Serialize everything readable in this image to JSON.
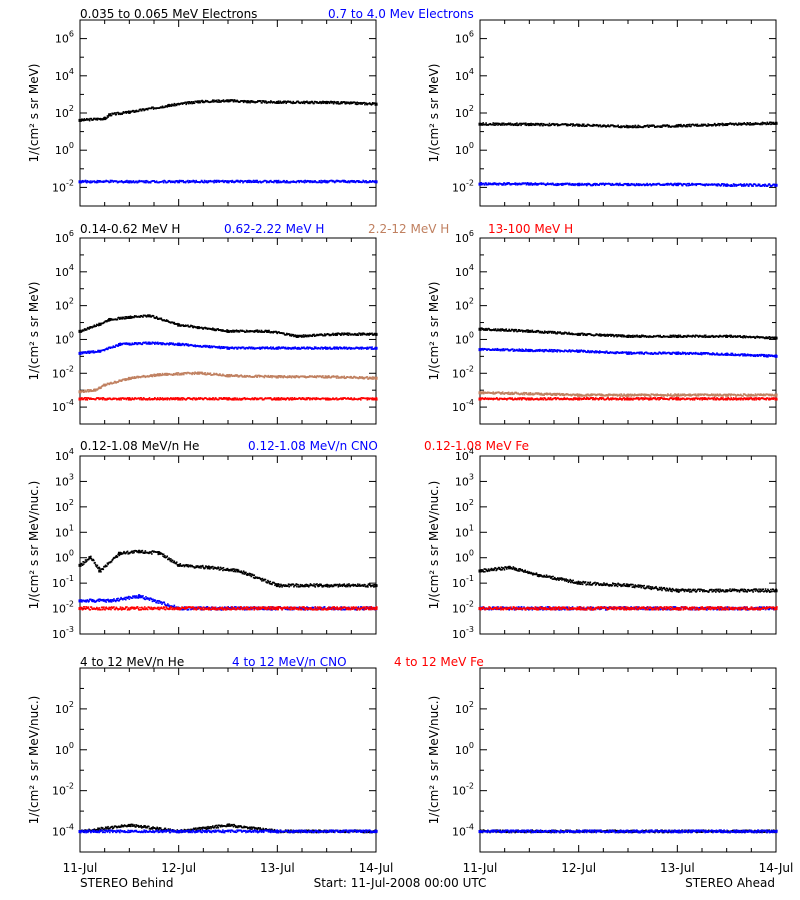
{
  "footer": {
    "left": "STEREO Behind",
    "center": "Start: 11-Jul-2008 00:00 UTC",
    "right": "STEREO Ahead"
  },
  "x_ticks": [
    "11-Jul",
    "12-Jul",
    "13-Jul",
    "14-Jul"
  ],
  "rows": [
    {
      "ylabel": "1/(cm² s sr MeV)",
      "ylim_exp": [
        -3,
        7
      ],
      "ticks": [
        -2,
        0,
        2,
        4,
        6
      ],
      "legend": [
        {
          "text": "0.035 to 0.065 MeV Electrons",
          "color": "#000000"
        },
        {
          "text": "0.7 to 4.0 Mev Electrons",
          "color": "#0000ff"
        }
      ]
    },
    {
      "ylabel": "1/(cm² s sr MeV)",
      "ylim_exp": [
        -5,
        6
      ],
      "ticks": [
        -4,
        -2,
        0,
        2,
        4,
        6
      ],
      "legend": [
        {
          "text": "0.14-0.62 MeV H",
          "color": "#000000"
        },
        {
          "text": "0.62-2.22 MeV H",
          "color": "#0000ff"
        },
        {
          "text": "2.2-12 MeV H",
          "color": "#c08060"
        },
        {
          "text": "13-100 MeV H",
          "color": "#ff0000"
        }
      ]
    },
    {
      "ylabel": "1/(cm² s sr MeV/nuc.)",
      "ylim_exp": [
        -3,
        4
      ],
      "ticks": [
        -3,
        -2,
        -1,
        0,
        1,
        2,
        3,
        4
      ],
      "legend": [
        {
          "text": "0.12-1.08 MeV/n He",
          "color": "#000000"
        },
        {
          "text": "0.12-1.08 MeV/n CNO",
          "color": "#0000ff"
        },
        {
          "text": "0.12-1.08 MeV Fe",
          "color": "#ff0000"
        }
      ]
    },
    {
      "ylabel": "1/(cm² s sr MeV/nuc.)",
      "ylim_exp": [
        -5,
        4
      ],
      "ticks": [
        -4,
        -2,
        0,
        2
      ],
      "legend": [
        {
          "text": "4 to 12 MeV/n He",
          "color": "#000000"
        },
        {
          "text": "4 to 12 MeV/n CNO",
          "color": "#0000ff"
        },
        {
          "text": "4 to 12 MeV Fe",
          "color": "#ff0000"
        }
      ]
    }
  ],
  "chart_data": [
    {
      "type": "scatter",
      "panel": "behind-electrons",
      "xlim_days": [
        0,
        3
      ],
      "ylim": [
        0.001,
        10000000
      ],
      "log_y": true,
      "series": [
        {
          "name": "0.035 to 0.065 MeV Electrons",
          "color": "#000000",
          "x": [
            0,
            0.25,
            0.3,
            0.5,
            0.9,
            1.2,
            1.5,
            1.7,
            2.0,
            2.5,
            3.0
          ],
          "y": [
            40,
            50,
            80,
            110,
            250,
            400,
            450,
            400,
            370,
            360,
            300
          ]
        },
        {
          "name": "0.7 to 4.0 Mev Electrons",
          "color": "#0000ff",
          "x": [
            0,
            0.5,
            1.0,
            1.5,
            2.0,
            2.5,
            3.0
          ],
          "y": [
            0.02,
            0.02,
            0.02,
            0.02,
            0.02,
            0.02,
            0.02
          ]
        }
      ]
    },
    {
      "type": "scatter",
      "panel": "ahead-electrons",
      "xlim_days": [
        0,
        3
      ],
      "ylim": [
        0.001,
        10000000
      ],
      "log_y": true,
      "series": [
        {
          "name": "0.035 to 0.065 MeV Electrons",
          "color": "#000000",
          "x": [
            0,
            0.5,
            1.0,
            1.5,
            2.0,
            2.5,
            3.0
          ],
          "y": [
            25,
            24,
            22,
            18,
            20,
            24,
            28
          ]
        },
        {
          "name": "0.7 to 4.0 Mev Electrons",
          "color": "#0000ff",
          "x": [
            0,
            0.5,
            1.0,
            1.5,
            2.0,
            2.5,
            3.0
          ],
          "y": [
            0.015,
            0.015,
            0.014,
            0.014,
            0.014,
            0.013,
            0.013
          ]
        }
      ]
    },
    {
      "type": "scatter",
      "panel": "behind-protons",
      "xlim_days": [
        0,
        3
      ],
      "ylim": [
        1e-05,
        1000000
      ],
      "log_y": true,
      "series": [
        {
          "name": "0.14-0.62 MeV H",
          "color": "#000000",
          "x": [
            0,
            0.2,
            0.3,
            0.5,
            0.7,
            1.0,
            1.2,
            1.5,
            1.9,
            2.2,
            2.6,
            3.0
          ],
          "y": [
            3,
            8,
            15,
            20,
            25,
            7,
            5,
            3,
            3,
            1.5,
            2,
            2
          ]
        },
        {
          "name": "0.62-2.22 MeV H",
          "color": "#0000ff",
          "x": [
            0,
            0.2,
            0.4,
            0.7,
            1.0,
            1.5,
            2.0,
            2.5,
            3.0
          ],
          "y": [
            0.15,
            0.2,
            0.5,
            0.6,
            0.5,
            0.3,
            0.3,
            0.3,
            0.3
          ]
        },
        {
          "name": "2.2-12 MeV H",
          "color": "#c08060",
          "x": [
            0,
            0.15,
            0.25,
            0.5,
            0.8,
            1.2,
            1.5,
            2.0,
            2.5,
            3.0
          ],
          "y": [
            0.0008,
            0.001,
            0.002,
            0.005,
            0.008,
            0.01,
            0.007,
            0.006,
            0.006,
            0.005
          ]
        },
        {
          "name": "13-100 MeV H",
          "color": "#ff0000",
          "x": [
            0,
            0.5,
            1.0,
            1.5,
            2.0,
            2.5,
            3.0
          ],
          "y": [
            0.0003,
            0.0003,
            0.0003,
            0.0003,
            0.0003,
            0.0003,
            0.0003
          ]
        }
      ]
    },
    {
      "type": "scatter",
      "panel": "ahead-protons",
      "xlim_days": [
        0,
        3
      ],
      "ylim": [
        1e-05,
        1000000
      ],
      "log_y": true,
      "series": [
        {
          "name": "0.14-0.62 MeV H",
          "color": "#000000",
          "x": [
            0,
            0.5,
            1.0,
            1.5,
            2.0,
            2.5,
            3.0
          ],
          "y": [
            4,
            3,
            2,
            1.5,
            1.5,
            1.5,
            1.2
          ]
        },
        {
          "name": "0.62-2.22 MeV H",
          "color": "#0000ff",
          "x": [
            0,
            0.5,
            1.0,
            1.5,
            2.0,
            2.5,
            3.0
          ],
          "y": [
            0.25,
            0.22,
            0.2,
            0.15,
            0.15,
            0.13,
            0.1
          ]
        },
        {
          "name": "2.2-12 MeV H",
          "color": "#c08060",
          "x": [
            0,
            0.5,
            1.0,
            1.5,
            2.0,
            2.5,
            3.0
          ],
          "y": [
            0.0007,
            0.0006,
            0.0005,
            0.0005,
            0.0005,
            0.0005,
            0.0005
          ]
        },
        {
          "name": "13-100 MeV H",
          "color": "#ff0000",
          "x": [
            0,
            0.5,
            1.0,
            1.5,
            2.0,
            2.5,
            3.0
          ],
          "y": [
            0.0003,
            0.0003,
            0.0003,
            0.0003,
            0.0003,
            0.0003,
            0.0003
          ]
        }
      ]
    },
    {
      "type": "scatter",
      "panel": "behind-heavy-low",
      "xlim_days": [
        0,
        3
      ],
      "ylim": [
        0.001,
        10000
      ],
      "log_y": true,
      "series": [
        {
          "name": "0.12-1.08 MeV/n He",
          "color": "#000000",
          "x": [
            0,
            0.1,
            0.2,
            0.4,
            0.6,
            0.8,
            1.0,
            1.3,
            1.6,
            2.0,
            2.5,
            3.0
          ],
          "y": [
            0.5,
            1.0,
            0.3,
            1.5,
            1.7,
            1.5,
            0.5,
            0.4,
            0.3,
            0.08,
            0.08,
            0.08
          ]
        },
        {
          "name": "0.12-1.08 MeV/n CNO",
          "color": "#0000ff",
          "x": [
            0,
            0.3,
            0.6,
            1.0,
            1.5,
            2.0,
            3.0
          ],
          "y": [
            0.02,
            0.02,
            0.03,
            0.01,
            0.01,
            0.01,
            0.01
          ]
        },
        {
          "name": "0.12-1.08 MeV Fe",
          "color": "#ff0000",
          "x": [
            0,
            1.0,
            2.0,
            3.0
          ],
          "y": [
            0.01,
            0.01,
            0.01,
            0.01
          ]
        }
      ]
    },
    {
      "type": "scatter",
      "panel": "ahead-heavy-low",
      "xlim_days": [
        0,
        3
      ],
      "ylim": [
        0.001,
        10000
      ],
      "log_y": true,
      "series": [
        {
          "name": "0.12-1.08 MeV/n He",
          "color": "#000000",
          "x": [
            0,
            0.3,
            0.6,
            1.0,
            1.5,
            2.0,
            2.5,
            3.0
          ],
          "y": [
            0.3,
            0.4,
            0.2,
            0.1,
            0.08,
            0.05,
            0.05,
            0.05
          ]
        },
        {
          "name": "0.12-1.08 MeV/n CNO",
          "color": "#0000ff",
          "x": [
            0,
            1.0,
            2.0,
            3.0
          ],
          "y": [
            0.01,
            0.01,
            0.01,
            0.01
          ]
        },
        {
          "name": "0.12-1.08 MeV Fe",
          "color": "#ff0000",
          "x": [
            0,
            1.0,
            2.0,
            3.0
          ],
          "y": [
            0.01,
            0.01,
            0.01,
            0.01
          ]
        }
      ]
    },
    {
      "type": "scatter",
      "panel": "behind-heavy-high",
      "xlim_days": [
        0,
        3
      ],
      "ylim": [
        1e-05,
        10000
      ],
      "log_y": true,
      "series": [
        {
          "name": "4 to 12 MeV/n He",
          "color": "#000000",
          "x": [
            0,
            0.5,
            1.0,
            1.5,
            2.0,
            2.5,
            3.0
          ],
          "y": [
            0.0001,
            0.0002,
            0.0001,
            0.0002,
            0.0001,
            0.0001,
            0.0001
          ]
        },
        {
          "name": "4 to 12 MeV/n CNO",
          "color": "#0000ff",
          "x": [
            0,
            1.0,
            2.0,
            3.0
          ],
          "y": [
            0.0001,
            0.0001,
            0.0001,
            0.0001
          ]
        }
      ]
    },
    {
      "type": "scatter",
      "panel": "ahead-heavy-high",
      "xlim_days": [
        0,
        3
      ],
      "ylim": [
        1e-05,
        10000
      ],
      "log_y": true,
      "series": [
        {
          "name": "4 to 12 MeV/n He",
          "color": "#000000",
          "x": [
            0,
            1.0,
            2.0,
            3.0
          ],
          "y": [
            0.0001,
            0.0001,
            0.0001,
            0.0001
          ]
        },
        {
          "name": "4 to 12 MeV/n CNO",
          "color": "#0000ff",
          "x": [
            0,
            1.0,
            2.0,
            3.0
          ],
          "y": [
            0.0001,
            0.0001,
            0.0001,
            0.0001
          ]
        }
      ]
    }
  ]
}
